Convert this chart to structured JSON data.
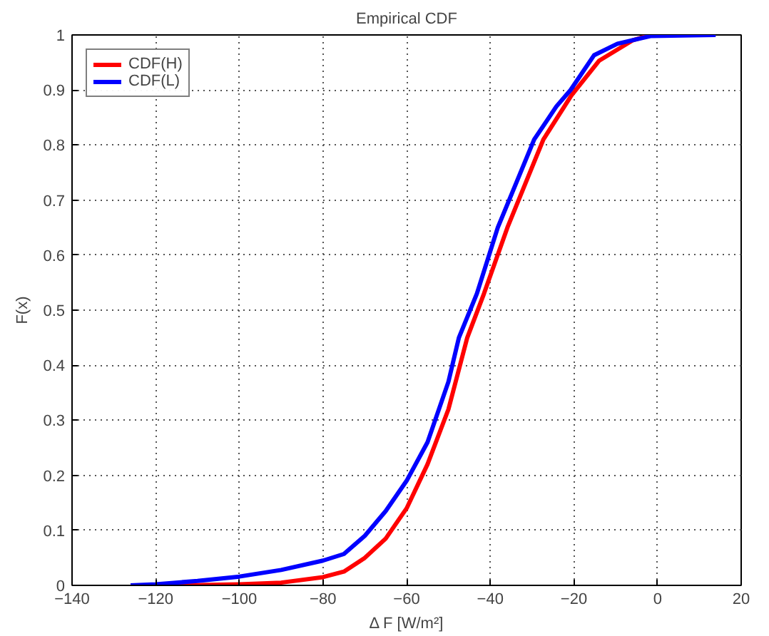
{
  "chart_data": {
    "type": "line",
    "title": "Empirical CDF",
    "xlabel": "Δ F [W/m²]",
    "ylabel": "F(x)",
    "xlim": [
      -140,
      20
    ],
    "xticks": [
      -140,
      -120,
      -100,
      -80,
      -60,
      -40,
      -20,
      0,
      20
    ],
    "ylim": [
      0,
      1
    ],
    "yticks": [
      0,
      0.1,
      0.2,
      0.3,
      0.4,
      0.5,
      0.6,
      0.7,
      0.8,
      0.9,
      1
    ],
    "grid": true,
    "legend": "top left",
    "line_style": "solid",
    "series": [
      {
        "name": "CDF(H)",
        "color": "#ff0000",
        "x": [
          -115,
          -100,
          -90,
          -80,
          -75,
          -70,
          -65,
          -60,
          -55,
          -50,
          -45.5,
          -41.5,
          -35.9,
          -27.3,
          -20.6,
          -14,
          -6,
          -1.7
        ],
        "values": [
          0,
          0.002,
          0.005,
          0.015,
          0.025,
          0.05,
          0.085,
          0.14,
          0.22,
          0.32,
          0.45,
          0.53,
          0.65,
          0.81,
          0.89,
          0.953,
          0.99,
          1
        ]
      },
      {
        "name": "CDF(L)",
        "color": "#0000ff",
        "x": [
          -126,
          -120,
          -110,
          -100,
          -90,
          -80,
          -75,
          -70,
          -65,
          -60,
          -55,
          -50,
          -47.5,
          -43.2,
          -38.2,
          -29.5,
          -24.2,
          -20.8,
          -15.2,
          -9.6,
          -1.7,
          13.9
        ],
        "values": [
          0,
          0.002,
          0.008,
          0.016,
          0.028,
          0.045,
          0.057,
          0.09,
          0.135,
          0.19,
          0.26,
          0.37,
          0.45,
          0.53,
          0.65,
          0.81,
          0.87,
          0.9,
          0.963,
          0.984,
          0.998,
          1
        ]
      }
    ]
  }
}
